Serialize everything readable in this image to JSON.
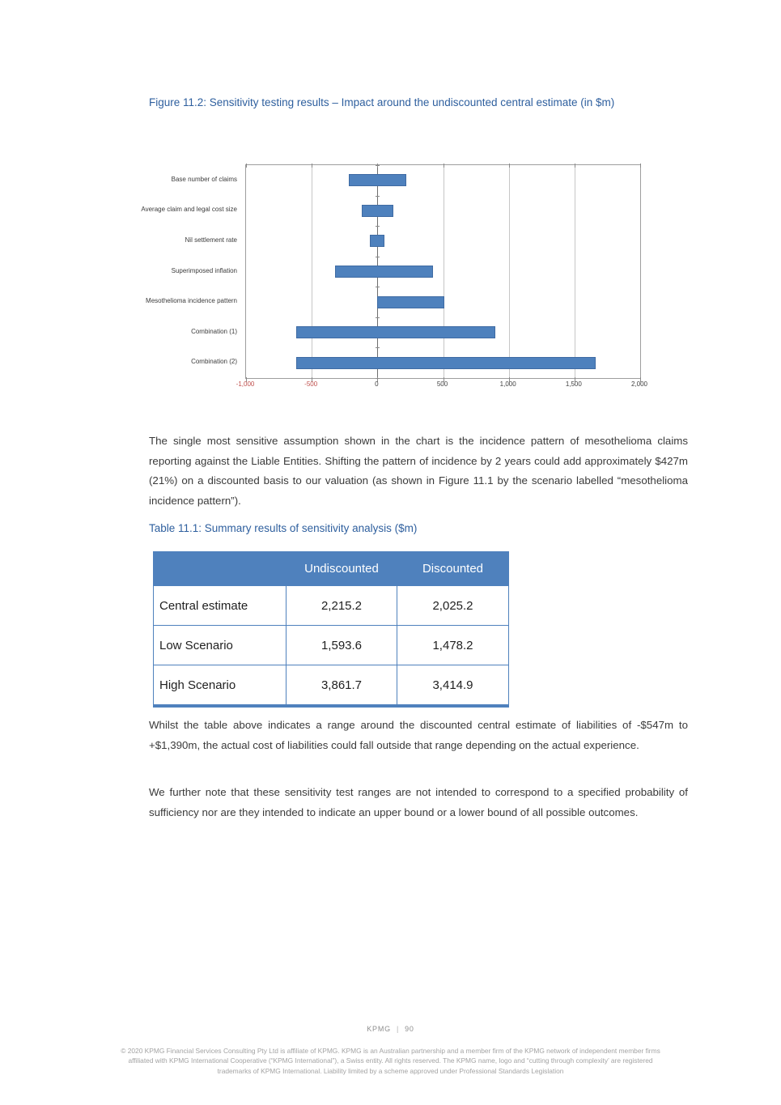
{
  "figure": {
    "caption": "Figure 11.2: Sensitivity testing results – Impact around the undiscounted central estimate (in $m)"
  },
  "chart_data": {
    "type": "bar",
    "orientation": "horizontal",
    "title": "Figure 11.2: Sensitivity testing results – Impact around the undiscounted central estimate (in $m)",
    "xlim": [
      -1000,
      2000
    ],
    "xticks": [
      -1000,
      -500,
      0,
      500,
      1000,
      1500,
      2000
    ],
    "xtick_labels": [
      "-1,000",
      "-500",
      "0",
      "500",
      "1,000",
      "1,500",
      "2,000"
    ],
    "grid": true,
    "legend": "none",
    "bar_color": "#4e81bd",
    "negative_tick_color": "#c0504d",
    "positive_tick_color": "#3f3f3f",
    "bars": [
      {
        "label": "Base number of claims",
        "from": -215,
        "to": 220
      },
      {
        "label": "Average claim and legal cost size",
        "from": -120,
        "to": 120
      },
      {
        "label": "Nil settlement rate",
        "from": -55,
        "to": 55
      },
      {
        "label": "Superimposed inflation",
        "from": -320,
        "to": 420
      },
      {
        "label": "Mesothelioma incidence pattern",
        "from": 0,
        "to": 510
      },
      {
        "label": "Combination (1)",
        "from": -620,
        "to": 900
      },
      {
        "label": "Combination (2)",
        "from": -620,
        "to": 1660
      }
    ]
  },
  "paragraphs": [
    "The single most sensitive assumption shown in the chart is the incidence pattern of mesothelioma claims reporting against the Liable Entities. Shifting the pattern of incidence by 2 years could add approximately $427m (21%) on a discounted basis to our valuation (as shown in Figure 11.1 by the scenario labelled “mesothelioma incidence pattern”).",
    "Whilst the table above indicates a range around the discounted central estimate of liabilities of -$547m to +$1,390m, the actual cost of liabilities could fall outside that range depending on the actual experience.",
    "We further note that these sensitivity test ranges are not intended to correspond to a specified probability of sufficiency nor are they intended to indicate an upper bound or a lower bound of all possible outcomes."
  ],
  "table": {
    "caption": "Table 11.1: Summary results of sensitivity analysis ($m)",
    "header": [
      "",
      "Undiscounted",
      "Discounted"
    ],
    "rows": [
      {
        "label": "Central estimate",
        "undiscounted": "2,215.2",
        "discounted": "2,025.2"
      },
      {
        "label": "Low Scenario",
        "undiscounted": "1,593.6",
        "discounted": "1,478.2"
      },
      {
        "label": "High Scenario",
        "undiscounted": "3,861.7",
        "discounted": "3,414.9"
      }
    ],
    "header_bg": "#4f81bd",
    "header_text_color": "#ffffff",
    "border_color": "#4f81bd"
  },
  "colors": {
    "caption_blue": "#2e5f9e",
    "body_text": "#3a3a3a"
  },
  "footer": {
    "brand": "KPMG",
    "separator": "|",
    "page_number": "90",
    "legal_lines": [
      "© 2020 KPMG Financial Services Consulting Pty Ltd is affiliate of KPMG. KPMG is an Australian partnership and a member firm of the KPMG network of independent member firms",
      "affiliated with KPMG International Cooperative (“KPMG International”), a Swiss entity. All rights reserved. The KPMG name, logo and “cutting through complexity’ are registered",
      "trademarks of KPMG International. Liability limited by a scheme approved under Professional Standards Legislation"
    ]
  }
}
